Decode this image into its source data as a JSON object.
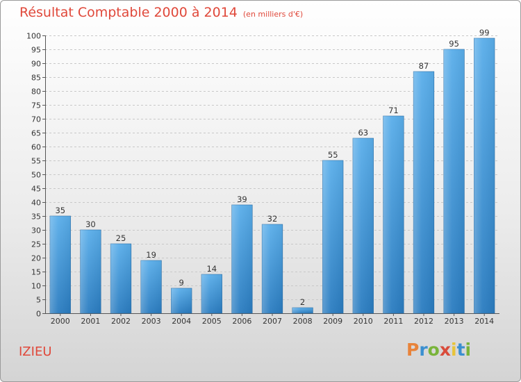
{
  "chart_data": {
    "type": "bar",
    "title": "Résultat Comptable 2000 à 2014",
    "subtitle": "(en milliers d'€)",
    "categories": [
      "2000",
      "2001",
      "2002",
      "2003",
      "2004",
      "2005",
      "2006",
      "2007",
      "2008",
      "2009",
      "2010",
      "2011",
      "2012",
      "2013",
      "2014"
    ],
    "values": [
      35,
      30,
      25,
      19,
      9,
      14,
      39,
      32,
      2,
      55,
      63,
      71,
      87,
      95,
      99
    ],
    "xlabel": "",
    "ylabel": "",
    "ylim": [
      0,
      100
    ],
    "ytick_step": 5,
    "grid": true,
    "bar_color": "#3f97d8"
  },
  "commune_name": "IZIEU",
  "logo": {
    "text": "Proxiti",
    "letters": [
      "P",
      "r",
      "o",
      "x",
      "i",
      "t",
      "i"
    ],
    "colors": [
      "#e8833a",
      "#3a8fd0",
      "#79b43a",
      "#d94b3a",
      "#e8c43a",
      "#3a8fd0",
      "#79b43a"
    ]
  }
}
